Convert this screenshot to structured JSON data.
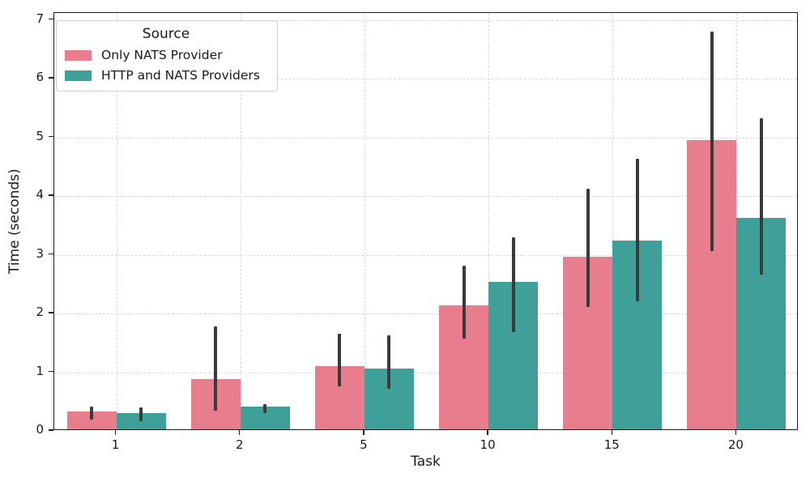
{
  "chart_data": {
    "type": "bar",
    "title": "",
    "xlabel": "Task",
    "ylabel": "Time (seconds)",
    "categories": [
      "1",
      "2",
      "5",
      "10",
      "15",
      "20"
    ],
    "series": [
      {
        "name": "Only NATS Provider",
        "color": "#e87d8e",
        "values": [
          0.31,
          0.85,
          1.07,
          2.11,
          2.94,
          4.92
        ],
        "error_low": [
          0.19,
          0.35,
          0.76,
          1.57,
          2.11,
          3.06
        ],
        "error_high": [
          0.42,
          1.78,
          1.65,
          2.81,
          4.12,
          6.8
        ]
      },
      {
        "name": "HTTP and NATS Providers",
        "color": "#3fa099",
        "values": [
          0.28,
          0.38,
          1.04,
          2.51,
          3.22,
          3.6
        ],
        "error_low": [
          0.17,
          0.31,
          0.72,
          1.68,
          2.21,
          2.66
        ],
        "error_high": [
          0.4,
          0.46,
          1.63,
          3.3,
          4.63,
          5.33
        ]
      }
    ],
    "ylim": [
      0,
      7
    ],
    "yticks": [
      0,
      1,
      2,
      3,
      4,
      5,
      6,
      7
    ],
    "grid": "both-dashed",
    "legend": {
      "title": "Source",
      "position": "upper-left"
    },
    "error_bar_color": "#3a3a3a",
    "grid_color": "#d8d8d8"
  }
}
